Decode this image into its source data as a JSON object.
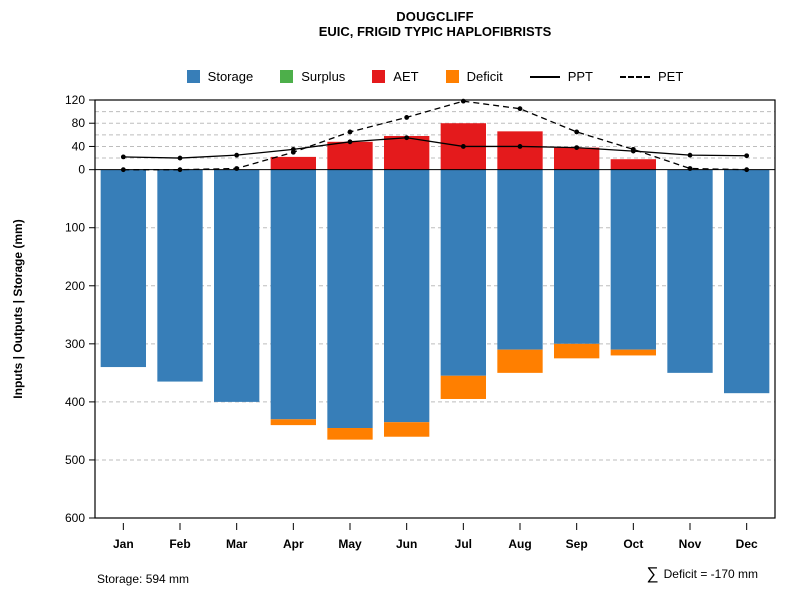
{
  "chart_data": {
    "type": "bar",
    "title": "DOUGCLIFF",
    "subtitle": "EUIC, FRIGID TYPIC HAPLOFIBRISTS",
    "ylabel": "Inputs | Outputs | Storage  (mm)",
    "categories": [
      "Jan",
      "Feb",
      "Mar",
      "Apr",
      "May",
      "Jun",
      "Jul",
      "Aug",
      "Sep",
      "Oct",
      "Nov",
      "Dec"
    ],
    "y_axis": {
      "max": 120,
      "min": -600,
      "ticks_up": [
        0,
        40,
        80,
        120
      ],
      "ticks_down": [
        100,
        200,
        300,
        400,
        500,
        600
      ],
      "grid_up_step": 20,
      "grid_down_step": 100,
      "grid": true,
      "grid_color": "#bdbdbd"
    },
    "series": [
      {
        "name": "Storage",
        "kind": "bar-down",
        "color": "#377EB8",
        "values": [
          340,
          365,
          400,
          430,
          445,
          435,
          355,
          310,
          300,
          310,
          350,
          385
        ]
      },
      {
        "name": "Surplus",
        "kind": "bar-up-stacked",
        "color": "#4DAF4A",
        "values": [
          0,
          0,
          0,
          0,
          0,
          0,
          0,
          0,
          0,
          0,
          0,
          0
        ]
      },
      {
        "name": "AET",
        "kind": "bar-up",
        "color": "#E41A1C",
        "values": [
          0,
          0,
          0,
          22,
          48,
          58,
          80,
          66,
          38,
          18,
          0,
          0
        ]
      },
      {
        "name": "Deficit",
        "kind": "bar-down-stacked",
        "color": "#FF7F00",
        "values": [
          0,
          0,
          0,
          10,
          20,
          25,
          40,
          40,
          25,
          10,
          0,
          0
        ]
      },
      {
        "name": "PPT",
        "kind": "line",
        "dash": "solid",
        "color": "#000000",
        "values": [
          22,
          20,
          25,
          35,
          48,
          55,
          40,
          40,
          38,
          32,
          25,
          24
        ]
      },
      {
        "name": "PET",
        "kind": "line",
        "dash": "dashed",
        "color": "#000000",
        "values": [
          0,
          0,
          2,
          30,
          65,
          90,
          118,
          105,
          65,
          35,
          2,
          0
        ]
      }
    ],
    "legend": [
      {
        "label": "Storage",
        "swatch": "square",
        "color": "#377EB8"
      },
      {
        "label": "Surplus",
        "swatch": "square",
        "color": "#4DAF4A"
      },
      {
        "label": "AET",
        "swatch": "square",
        "color": "#E41A1C"
      },
      {
        "label": "Deficit",
        "swatch": "square",
        "color": "#FF7F00"
      },
      {
        "label": "PPT",
        "swatch": "line-solid",
        "color": "#000000"
      },
      {
        "label": "PET",
        "swatch": "line-dashed",
        "color": "#000000"
      }
    ],
    "footnotes": {
      "left": "Storage: 594 mm",
      "sigma": "∑",
      "right": "Deficit = -170 mm"
    },
    "legend_position": "top-center"
  }
}
